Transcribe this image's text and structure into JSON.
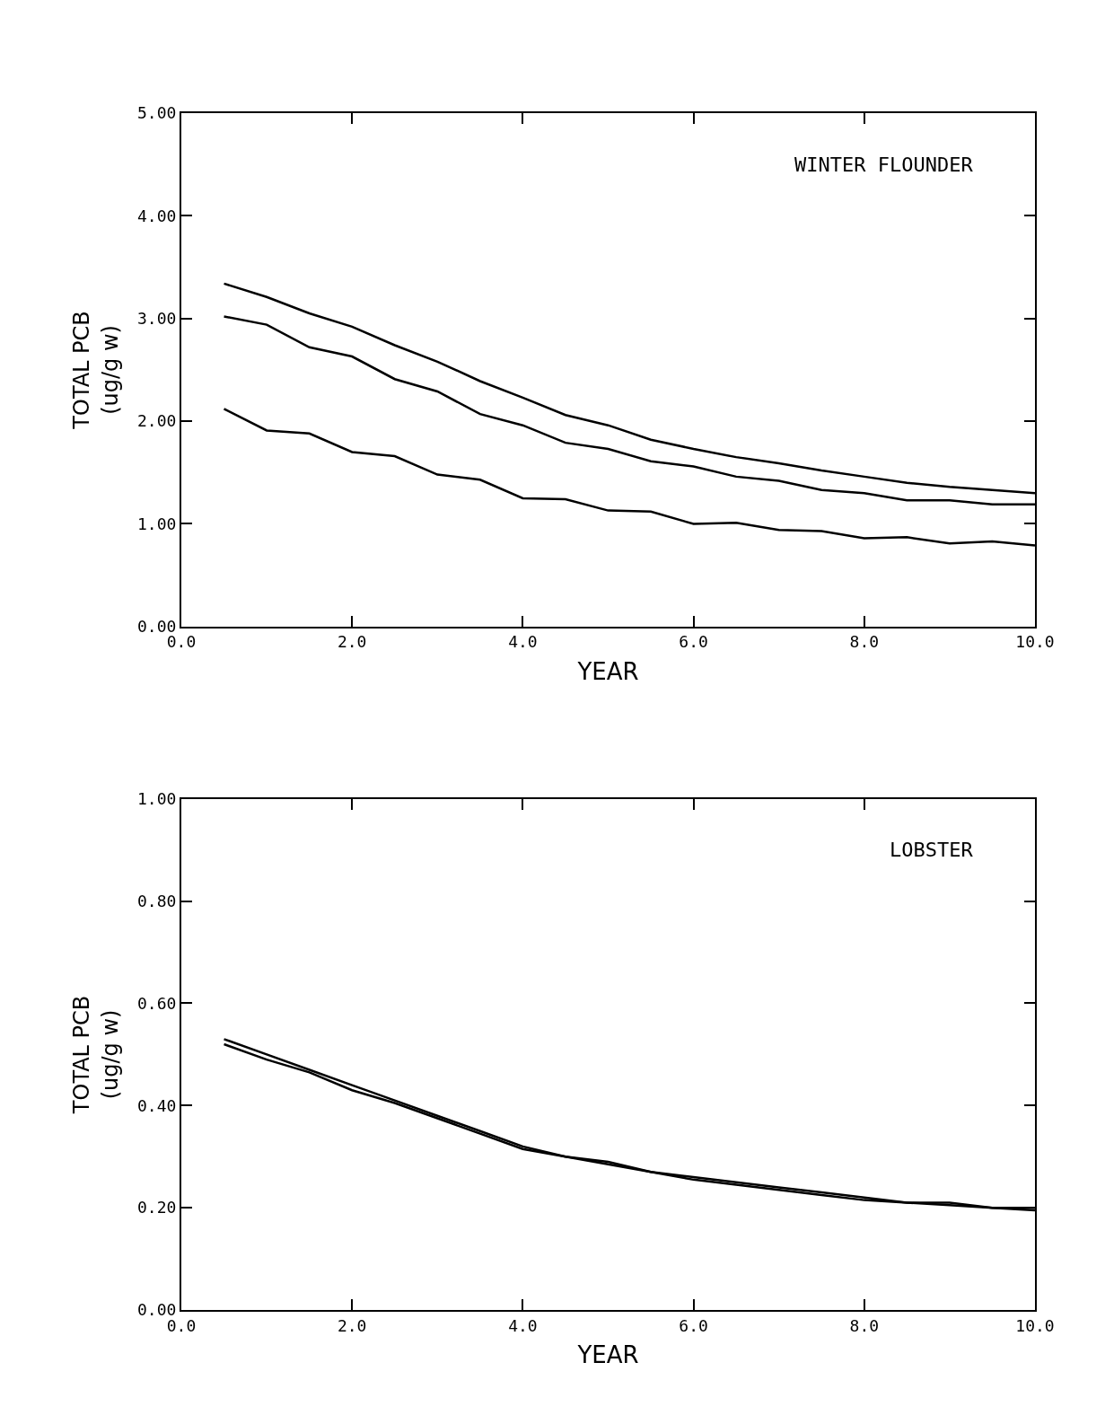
{
  "chart_data": [
    {
      "type": "line",
      "xlabel": "YEAR",
      "ylabel": "TOTAL PCB\n(ug/g w)",
      "annotations": [
        "WINTER FLOUNDER"
      ],
      "x": [
        0.5,
        1.0,
        1.5,
        2.0,
        2.5,
        3.0,
        3.5,
        4.0,
        4.5,
        5.0,
        5.5,
        6.0,
        6.5,
        7.0,
        7.5,
        8.0,
        8.5,
        9.0,
        9.5,
        10.0
      ],
      "series": [
        {
          "color": "#000000",
          "values": [
            3.34,
            3.21,
            3.05,
            2.92,
            2.74,
            2.58,
            2.39,
            2.23,
            2.06,
            1.96,
            1.82,
            1.73,
            1.65,
            1.59,
            1.52,
            1.46,
            1.4,
            1.36,
            1.33,
            1.3
          ]
        },
        {
          "color": "#000000",
          "values": [
            3.02,
            2.94,
            2.72,
            2.63,
            2.41,
            2.29,
            2.07,
            1.96,
            1.79,
            1.73,
            1.61,
            1.56,
            1.46,
            1.42,
            1.33,
            1.3,
            1.23,
            1.23,
            1.19,
            1.19
          ]
        },
        {
          "color": "#000000",
          "values": [
            2.12,
            1.91,
            1.88,
            1.7,
            1.66,
            1.48,
            1.43,
            1.25,
            1.24,
            1.13,
            1.12,
            1.0,
            1.01,
            0.94,
            0.93,
            0.86,
            0.87,
            0.81,
            0.83,
            0.79
          ]
        }
      ],
      "xlim": [
        0,
        10
      ],
      "ylim": [
        0,
        5
      ],
      "xticks": [
        {
          "value": 0,
          "label": "0.0"
        },
        {
          "value": 2,
          "label": "2.0"
        },
        {
          "value": 4,
          "label": "4.0"
        },
        {
          "value": 6,
          "label": "6.0"
        },
        {
          "value": 8,
          "label": "8.0"
        },
        {
          "value": 10,
          "label": "10.0"
        }
      ],
      "yticks": [
        {
          "value": 0,
          "label": "0.00"
        },
        {
          "value": 1,
          "label": "1.00"
        },
        {
          "value": 2,
          "label": "2.00"
        },
        {
          "value": 3,
          "label": "3.00"
        },
        {
          "value": 4,
          "label": "4.00"
        },
        {
          "value": 5,
          "label": "5.00"
        }
      ],
      "marker": "none",
      "line_style": "solid"
    },
    {
      "type": "line",
      "xlabel": "YEAR",
      "ylabel": "TOTAL PCB\n(ug/g w)",
      "annotations": [
        "LOBSTER"
      ],
      "x": [
        0.5,
        1.0,
        1.5,
        2.0,
        2.5,
        3.0,
        3.5,
        4.0,
        4.5,
        5.0,
        5.5,
        6.0,
        6.5,
        7.0,
        7.5,
        8.0,
        8.5,
        9.0,
        9.5,
        10.0
      ],
      "series": [
        {
          "color": "#000000",
          "values": [
            0.53,
            0.5,
            0.47,
            0.44,
            0.41,
            0.38,
            0.35,
            0.32,
            0.3,
            0.29,
            0.27,
            0.26,
            0.25,
            0.24,
            0.23,
            0.22,
            0.21,
            0.21,
            0.2,
            0.2
          ]
        },
        {
          "color": "#000000",
          "values": [
            0.52,
            0.49,
            0.465,
            0.43,
            0.405,
            0.375,
            0.345,
            0.315,
            0.3,
            0.285,
            0.27,
            0.255,
            0.245,
            0.235,
            0.225,
            0.215,
            0.21,
            0.205,
            0.2,
            0.195
          ]
        }
      ],
      "xlim": [
        0,
        10
      ],
      "ylim": [
        0,
        1
      ],
      "xticks": [
        {
          "value": 0,
          "label": "0.0"
        },
        {
          "value": 2,
          "label": "2.0"
        },
        {
          "value": 4,
          "label": "4.0"
        },
        {
          "value": 6,
          "label": "6.0"
        },
        {
          "value": 8,
          "label": "8.0"
        },
        {
          "value": 10,
          "label": "10.0"
        }
      ],
      "yticks": [
        {
          "value": 0,
          "label": "0.00"
        },
        {
          "value": 0.2,
          "label": "0.20"
        },
        {
          "value": 0.4,
          "label": "0.40"
        },
        {
          "value": 0.6,
          "label": "0.60"
        },
        {
          "value": 0.8,
          "label": "0.80"
        },
        {
          "value": 1,
          "label": "1.00"
        }
      ],
      "marker": "none",
      "line_style": "solid"
    }
  ]
}
